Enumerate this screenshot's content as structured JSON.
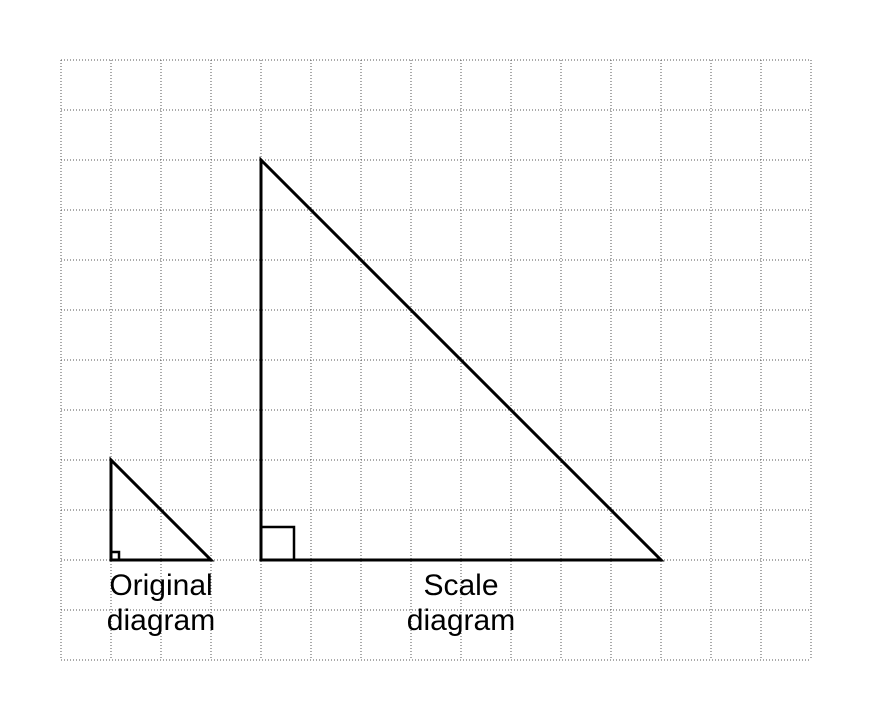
{
  "grid": {
    "columns": 15,
    "rows": 12
  },
  "original": {
    "label_line1": "Original",
    "label_line2": "diagram",
    "base_squares": 2,
    "height_squares": 2
  },
  "scale": {
    "label_line1": "Scale",
    "label_line2": "diagram",
    "base_squares": 8,
    "height_squares": 8
  }
}
